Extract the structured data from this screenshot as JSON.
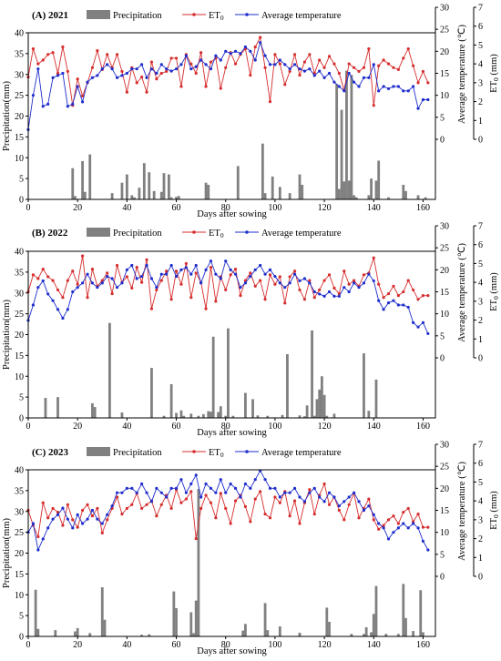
{
  "colors": {
    "precipitation": "#808080",
    "et0": "#d62d2d",
    "temperature": "#1f2ecc",
    "axis": "#000000"
  },
  "legend": {
    "precipitation": "Precipitation",
    "et0_main": "ET",
    "et0_sub": "0",
    "temperature": "Average temperature"
  },
  "chart_data": [
    {
      "type": "bar+line",
      "title": "(A) 2021",
      "xlabel": "Days after sowing",
      "ylabel_left": "Precipitation(mm)",
      "ylabel_right_1": "Average temperature (℃)",
      "ylabel_right_2_main": "ET",
      "ylabel_right_2_sub": "0",
      "ylabel_right_2_unit": " (mm)",
      "xlim": [
        0,
        165
      ],
      "xticks": [
        0,
        20,
        40,
        60,
        80,
        100,
        120,
        140,
        160
      ],
      "ylim_precip": [
        0,
        40
      ],
      "yticks_precip": [
        0,
        5,
        10,
        15,
        20,
        25,
        30,
        35,
        40
      ],
      "ylim_temp": [
        0,
        30
      ],
      "yticks_temp": [
        0,
        5,
        10,
        15,
        20,
        25,
        30
      ],
      "ylim_et0": [
        0,
        7
      ],
      "yticks_et0": [
        0,
        1,
        2,
        3,
        4,
        5,
        6,
        7
      ],
      "precip_x": [
        18,
        19,
        22,
        23,
        25,
        34,
        38,
        40,
        42,
        43,
        45,
        47,
        49,
        51,
        54,
        55,
        57,
        58,
        60,
        61,
        72,
        73,
        85,
        95,
        96,
        99,
        102,
        106,
        110,
        111,
        125,
        126,
        127,
        128,
        129,
        130,
        131,
        132,
        133,
        138,
        139,
        141,
        142,
        146,
        152,
        153,
        158,
        161
      ],
      "precip_y": [
        7.5,
        0.8,
        9.2,
        1.8,
        10.8,
        1.5,
        4.0,
        6.0,
        1.0,
        0.5,
        2.8,
        8.7,
        6.5,
        2.0,
        1.8,
        6.3,
        6.0,
        0.5,
        0.6,
        0.8,
        4.0,
        3.5,
        8.0,
        13.4,
        1.5,
        5.5,
        3.0,
        1.5,
        6.0,
        3.5,
        27.7,
        2.5,
        21.5,
        4.3,
        30.9,
        4.5,
        29.9,
        1.0,
        0.5,
        1.0,
        5.0,
        4.5,
        9.3,
        0.5,
        3.5,
        2.0,
        1.0,
        0.5
      ],
      "temp_x": [
        0,
        2,
        4,
        6,
        8,
        10,
        12,
        14,
        16,
        18,
        20,
        22,
        24,
        26,
        28,
        30,
        32,
        34,
        36,
        38,
        40,
        42,
        44,
        46,
        48,
        50,
        52,
        54,
        56,
        58,
        60,
        62,
        64,
        66,
        68,
        70,
        72,
        74,
        76,
        78,
        80,
        82,
        84,
        86,
        88,
        90,
        92,
        94,
        96,
        98,
        100,
        102,
        104,
        106,
        108,
        110,
        112,
        114,
        116,
        118,
        120,
        122,
        124,
        126,
        128,
        130,
        132,
        134,
        136,
        138,
        140,
        142,
        144,
        146,
        148,
        150,
        152,
        154,
        156,
        158,
        160,
        162
      ],
      "temp_y": [
        2.2,
        10,
        16,
        7.5,
        8,
        14,
        14.5,
        15,
        7.5,
        8,
        12,
        8.5,
        13,
        14,
        14.5,
        16,
        17,
        16,
        14,
        14.5,
        15,
        16,
        16,
        17,
        14,
        16,
        15,
        17,
        16,
        15.5,
        16,
        17,
        19,
        16,
        16.5,
        18,
        17,
        16,
        19,
        18,
        20,
        19.5,
        20,
        19.5,
        21,
        20,
        18,
        22,
        19,
        17,
        17,
        18,
        17,
        16,
        17,
        16,
        15.5,
        16,
        14.5,
        15.5,
        14,
        15,
        13,
        12,
        11,
        15,
        13,
        12,
        14,
        14,
        17,
        11,
        12,
        11.5,
        12,
        12,
        11,
        11,
        12,
        7,
        9,
        9
      ],
      "et0_x": [
        0,
        2,
        4,
        6,
        8,
        10,
        12,
        14,
        16,
        18,
        20,
        22,
        24,
        26,
        28,
        30,
        32,
        34,
        36,
        38,
        40,
        42,
        44,
        46,
        48,
        50,
        52,
        54,
        56,
        58,
        60,
        62,
        64,
        66,
        68,
        70,
        72,
        74,
        76,
        78,
        80,
        82,
        84,
        86,
        88,
        90,
        92,
        94,
        96,
        98,
        100,
        102,
        104,
        106,
        108,
        110,
        112,
        114,
        116,
        118,
        120,
        122,
        124,
        126,
        128,
        130,
        132,
        134,
        136,
        138,
        140,
        142,
        144,
        146,
        148,
        150,
        152,
        154,
        156,
        158,
        160,
        162
      ],
      "et0_y": [
        3.3,
        4.8,
        4.0,
        4.2,
        4.5,
        4.6,
        3.5,
        4.9,
        3.6,
        1.8,
        3.2,
        2.3,
        3.0,
        3.8,
        4.7,
        3.7,
        4.5,
        3.8,
        4.5,
        3.6,
        2.5,
        3.8,
        3.0,
        3.3,
        2.5,
        4.1,
        3.2,
        3.5,
        3.6,
        4.3,
        4.3,
        2.8,
        4.5,
        4.0,
        3.5,
        4.6,
        2.8,
        4.1,
        4.3,
        2.7,
        3.8,
        4.6,
        4.0,
        4.5,
        4.8,
        3.4,
        4.9,
        5.4,
        3.8,
        2.0,
        4.5,
        4.0,
        2.9,
        3.6,
        4.5,
        3.4,
        4.1,
        4.5,
        3.5,
        4.2,
        3.8,
        4.4,
        4.0,
        3.5,
        2.6,
        4.0,
        3.8,
        3.6,
        3.8,
        4.8,
        1.8,
        3.9,
        4.2,
        4.0,
        3.8,
        3.7,
        4.3,
        4.8,
        3.9,
        3.0,
        3.6,
        3.0
      ]
    },
    {
      "type": "bar+line",
      "title": "(B) 2022",
      "xlabel": "Days after sowing",
      "ylabel_left": "Precipitation(mm)",
      "ylabel_right_1": "Average temperature (℃)",
      "ylabel_right_2_main": "ET",
      "ylabel_right_2_sub": "0",
      "ylabel_right_2_unit": " (mm)",
      "xlim": [
        0,
        165
      ],
      "xticks": [
        0,
        20,
        40,
        60,
        80,
        100,
        120,
        140,
        160
      ],
      "ylim_precip": [
        0,
        40
      ],
      "yticks_precip": [
        0,
        5,
        10,
        15,
        20,
        25,
        30,
        35,
        40
      ],
      "ylim_temp": [
        0,
        30
      ],
      "yticks_temp": [
        0,
        5,
        10,
        15,
        20,
        25,
        30
      ],
      "ylim_et0": [
        0,
        7
      ],
      "yticks_et0": [
        0,
        1,
        2,
        3,
        4,
        5,
        6,
        7
      ],
      "precip_x": [
        7,
        12,
        26,
        27,
        33,
        38,
        50,
        55,
        58,
        60,
        62,
        63,
        66,
        69,
        71,
        73,
        74,
        75,
        77,
        78,
        80,
        81,
        83,
        88,
        91,
        93,
        97,
        103,
        105,
        110,
        112,
        113,
        115,
        116,
        117,
        118,
        119,
        120,
        121,
        124,
        136,
        138,
        141
      ],
      "precip_y": [
        4.8,
        5.0,
        3.5,
        2.6,
        22.8,
        1.3,
        12.0,
        0.5,
        8.1,
        1.2,
        1.8,
        0.5,
        1.0,
        0.5,
        0.9,
        1.6,
        1.5,
        19.5,
        1.4,
        2.8,
        0.5,
        21.5,
        0.5,
        6.0,
        4.5,
        0.6,
        0.5,
        0.7,
        15.3,
        0.6,
        0.4,
        3.0,
        21.0,
        0.5,
        4.5,
        6.8,
        10.0,
        5.5,
        0.5,
        1.0,
        15.5,
        1.7,
        9.2
      ],
      "temp_x": [
        0,
        2,
        4,
        6,
        8,
        10,
        12,
        14,
        16,
        18,
        20,
        22,
        24,
        26,
        28,
        30,
        32,
        34,
        36,
        38,
        40,
        42,
        44,
        46,
        48,
        50,
        52,
        54,
        56,
        58,
        60,
        62,
        64,
        66,
        68,
        70,
        72,
        74,
        76,
        78,
        80,
        82,
        84,
        86,
        88,
        90,
        92,
        94,
        96,
        98,
        100,
        102,
        104,
        106,
        108,
        110,
        112,
        114,
        116,
        118,
        120,
        122,
        124,
        126,
        128,
        130,
        132,
        134,
        136,
        138,
        140,
        142,
        144,
        146,
        148,
        150,
        152,
        154,
        156,
        158,
        160,
        162
      ],
      "temp_y": [
        8.5,
        12,
        16,
        17.5,
        14.5,
        13,
        11,
        9,
        11,
        15,
        16,
        17,
        19,
        17,
        16,
        17,
        18.5,
        18,
        16,
        17,
        20,
        21,
        18,
        18.5,
        21,
        18,
        16,
        19,
        19,
        21,
        18.5,
        20,
        20.5,
        19,
        21,
        17,
        20,
        22,
        19,
        18,
        22,
        20,
        19,
        16,
        17,
        18.5,
        20,
        21,
        19,
        20,
        18.5,
        17,
        16,
        17,
        19,
        17.5,
        18,
        17,
        15,
        14.5,
        14,
        15,
        14,
        14,
        16,
        15,
        17,
        16,
        17,
        19,
        17.5,
        13,
        11,
        12.5,
        13,
        12,
        12,
        11.5,
        8,
        7,
        8,
        5.5
      ],
      "et0_x": [
        0,
        2,
        4,
        6,
        8,
        10,
        12,
        14,
        16,
        18,
        20,
        22,
        24,
        26,
        28,
        30,
        32,
        34,
        36,
        38,
        40,
        42,
        44,
        46,
        48,
        50,
        52,
        54,
        56,
        58,
        60,
        62,
        64,
        66,
        68,
        70,
        72,
        74,
        76,
        78,
        80,
        82,
        84,
        86,
        88,
        90,
        92,
        94,
        96,
        98,
        100,
        102,
        104,
        106,
        108,
        110,
        112,
        114,
        116,
        118,
        120,
        122,
        124,
        126,
        128,
        130,
        132,
        134,
        136,
        138,
        140,
        142,
        144,
        146,
        148,
        150,
        152,
        154,
        156,
        158,
        160,
        162
      ],
      "et0_y": [
        3.5,
        4.4,
        4.2,
        4.7,
        4.3,
        4.1,
        3.6,
        3.2,
        4.1,
        4.6,
        3.9,
        5.4,
        3.2,
        4.7,
        3.8,
        4.1,
        4.5,
        3.4,
        4.9,
        4.0,
        4.3,
        3.7,
        4.8,
        4.0,
        5.2,
        2.6,
        3.6,
        4.1,
        4.6,
        3.1,
        4.6,
        3.9,
        5.0,
        3.2,
        4.5,
        4.0,
        2.6,
        4.8,
        3.0,
        4.3,
        3.6,
        4.4,
        4.7,
        3.3,
        4.1,
        4.5,
        3.8,
        4.1,
        3.1,
        4.4,
        3.9,
        4.3,
        2.9,
        4.3,
        4.6,
        3.6,
        3.1,
        4.1,
        3.2,
        3.6,
        4.1,
        4.4,
        3.7,
        3.4,
        4.6,
        3.9,
        4.1,
        3.8,
        4.4,
        4.5,
        5.3,
        3.9,
        3.2,
        3.4,
        3.8,
        3.3,
        3.5,
        4.1,
        3.6,
        3.1,
        3.3,
        3.3
      ]
    },
    {
      "type": "bar+line",
      "title": "(C) 2023",
      "xlabel": "Days after sowing",
      "ylabel_left": "Precipitation(mm)",
      "ylabel_right_1": "Average temperature (℃)",
      "ylabel_right_2_main": "ET",
      "ylabel_right_2_sub": "0",
      "ylabel_right_2_unit": " (mm)",
      "xlim": [
        0,
        165
      ],
      "xticks": [
        0,
        20,
        40,
        60,
        80,
        100,
        120,
        140,
        160
      ],
      "ylim_precip": [
        0,
        40
      ],
      "yticks_precip": [
        0,
        5,
        10,
        15,
        20,
        25,
        30,
        35,
        40
      ],
      "ylim_temp": [
        0,
        30
      ],
      "yticks_temp": [
        0,
        5,
        10,
        15,
        20,
        25,
        30
      ],
      "ylim_et0": [
        0,
        7
      ],
      "yticks_et0": [
        0,
        1,
        2,
        3,
        4,
        5,
        6,
        7
      ],
      "precip_x": [
        3,
        4,
        11,
        19,
        20,
        25,
        30,
        31,
        46,
        49,
        59,
        60,
        66,
        67,
        68,
        69,
        87,
        88,
        96,
        97,
        102,
        110,
        121,
        122,
        131,
        136,
        137,
        139,
        140,
        141,
        145,
        150,
        152,
        153,
        156,
        159,
        160
      ],
      "precip_y": [
        11.2,
        1.8,
        1.5,
        1.2,
        2.0,
        0.8,
        11.8,
        4.0,
        0.4,
        0.5,
        10.8,
        6.8,
        5.8,
        0.8,
        8.6,
        35.4,
        1.4,
        3.0,
        8.0,
        1.5,
        2.4,
        0.9,
        6.9,
        3.5,
        0.6,
        0.6,
        2.2,
        1.0,
        5.4,
        12.1,
        0.6,
        0.6,
        12.6,
        4.4,
        1.3,
        11.1,
        1.0
      ],
      "temp_x": [
        0,
        2,
        4,
        6,
        8,
        10,
        12,
        14,
        16,
        18,
        20,
        22,
        24,
        26,
        28,
        30,
        32,
        34,
        36,
        38,
        40,
        42,
        44,
        46,
        48,
        50,
        52,
        54,
        56,
        58,
        60,
        62,
        64,
        66,
        68,
        70,
        72,
        74,
        76,
        78,
        80,
        82,
        84,
        86,
        88,
        90,
        92,
        94,
        96,
        98,
        100,
        102,
        104,
        106,
        108,
        110,
        112,
        114,
        116,
        118,
        120,
        122,
        124,
        126,
        128,
        130,
        132,
        134,
        136,
        138,
        140,
        142,
        144,
        146,
        148,
        150,
        152,
        154,
        156,
        158,
        160,
        162
      ],
      "temp_y": [
        10,
        12,
        6,
        8.5,
        11,
        13,
        14,
        15.5,
        13,
        11,
        14,
        12,
        13,
        15,
        13,
        12,
        14,
        16,
        19,
        19,
        20,
        20,
        19,
        21,
        19,
        17,
        20,
        19,
        18,
        20,
        20,
        22,
        19,
        21,
        23,
        18,
        21,
        20,
        19,
        22,
        19,
        21,
        20,
        18,
        21,
        20,
        22,
        24,
        22,
        20,
        20,
        18,
        19,
        19,
        20,
        18,
        17,
        19,
        20,
        18,
        17,
        19,
        18,
        16,
        17,
        18,
        19,
        17,
        15,
        16,
        14,
        12,
        11,
        8.5,
        10,
        11,
        12,
        11,
        12,
        11,
        8,
        6
      ],
      "et0_x": [
        0,
        2,
        4,
        6,
        8,
        10,
        12,
        14,
        16,
        18,
        20,
        22,
        24,
        26,
        28,
        30,
        32,
        34,
        36,
        38,
        40,
        42,
        44,
        46,
        48,
        50,
        52,
        54,
        56,
        58,
        60,
        62,
        64,
        66,
        68,
        70,
        72,
        74,
        76,
        78,
        80,
        82,
        84,
        86,
        88,
        90,
        92,
        94,
        96,
        98,
        100,
        102,
        104,
        106,
        108,
        110,
        112,
        114,
        116,
        118,
        120,
        122,
        124,
        126,
        128,
        130,
        132,
        134,
        136,
        138,
        140,
        142,
        144,
        146,
        148,
        150,
        152,
        154,
        156,
        158,
        160,
        162
      ],
      "et0_y": [
        3.5,
        2.7,
        2.1,
        3.9,
        3.1,
        3.6,
        3.4,
        2.7,
        3.8,
        3.0,
        2.6,
        3.5,
        3.8,
        3.2,
        3.6,
        2.3,
        3.0,
        3.6,
        4.2,
        3.3,
        3.6,
        3.8,
        4.4,
        3.6,
        3.8,
        4.0,
        3.2,
        3.8,
        4.3,
        3.6,
        4.6,
        3.9,
        4.1,
        4.5,
        2.0,
        3.6,
        4.3,
        3.9,
        3.1,
        4.4,
        3.6,
        2.8,
        4.0,
        4.3,
        3.7,
        2.9,
        4.1,
        4.5,
        3.3,
        3.1,
        4.2,
        3.9,
        4.5,
        3.2,
        4.0,
        2.8,
        3.9,
        4.6,
        3.3,
        4.3,
        4.9,
        3.8,
        4.2,
        3.5,
        3.0,
        3.8,
        4.4,
        3.1,
        3.6,
        4.1,
        3.0,
        2.5,
        2.7,
        3.0,
        3.2,
        2.8,
        3.4,
        3.6,
        2.9,
        3.3,
        2.6,
        2.6
      ]
    }
  ]
}
